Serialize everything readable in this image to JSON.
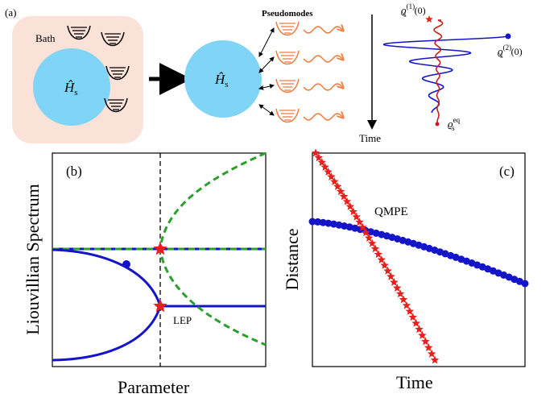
{
  "panel_a": {
    "label": "(a)",
    "bath": "Bath",
    "system_left": {
      "base": "Ĥ",
      "sub": "s"
    },
    "system_right": {
      "base": "Ĥ",
      "sub": "s"
    },
    "pseudomodes": "Pseudomodes",
    "time": "Time",
    "rho1": {
      "base": "ϱ",
      "sub": "s",
      "sup": "(1)",
      "arg": "(0)"
    },
    "rho2": {
      "base": "ϱ",
      "sub": "s",
      "sup": "(2)",
      "arg": "(0)"
    },
    "rho_eq": {
      "base": "ϱ",
      "sub": "s",
      "sup": "eq"
    }
  },
  "panel_b": {
    "label": "(b)",
    "ylabel": "Liouvillian Spectrum",
    "xlabel": "Parameter",
    "annotation": "LEP"
  },
  "panel_c": {
    "label": "(c)",
    "ylabel": "Distance",
    "xlabel": "Time",
    "annotation": "QMPE"
  }
}
